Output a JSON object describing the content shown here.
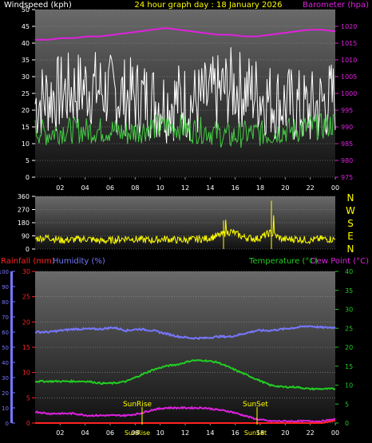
{
  "header": {
    "wind_label": "Windspeed (kph)",
    "title": "24 hour graph day : 18 January 2026",
    "baro_label": "Barometer (hpa)"
  },
  "colors": {
    "windspeed": "#ffffff",
    "windavg": "#44cc44",
    "barometer": "#dd22dd",
    "direction": "#ffff00",
    "rainfall": "#ff2222",
    "humidity": "#7777ff",
    "temperature": "#22cc22",
    "dewpoint": "#dd22dd",
    "panel_bg": "#666666"
  },
  "direction_compass": [
    "N",
    "W",
    "S",
    "E",
    "N"
  ],
  "sun_labels": {
    "sunrise": "SunRise",
    "sunset": "SunSet"
  },
  "lower_labels": {
    "rainfall": "Rainfall (mm)",
    "humidity": "Humidity (%)",
    "temperature": "Temperature (°C)",
    "dewpoint": "Dew Point (°C)"
  },
  "chart_data": [
    {
      "type": "line",
      "x_ticks": [
        "02",
        "04",
        "06",
        "08",
        "10",
        "12",
        "14",
        "16",
        "18",
        "20",
        "22",
        "00"
      ],
      "y_left": {
        "label": "Windspeed (kph)",
        "range": [
          0,
          50
        ],
        "ticks": [
          0,
          5,
          10,
          15,
          20,
          25,
          30,
          35,
          40,
          45,
          50
        ]
      },
      "y_right": {
        "label": "Barometer (hpa)",
        "range": [
          975,
          1025
        ],
        "ticks": [
          975,
          980,
          985,
          990,
          995,
          1000,
          1005,
          1010,
          1015,
          1020
        ]
      },
      "series": [
        {
          "name": "Windspeed (kph)",
          "axis": "left",
          "values": [
            22,
            24,
            25,
            26,
            27,
            26,
            25,
            24,
            24,
            23,
            22,
            23,
            22,
            23,
            25,
            27,
            26,
            25,
            23,
            22,
            21,
            20,
            22,
            24
          ]
        },
        {
          "name": "Barometer (hpa)",
          "axis": "right",
          "values": [
            1016,
            1016,
            1016.5,
            1016.5,
            1017,
            1017,
            1017.5,
            1018,
            1018.5,
            1019,
            1019.5,
            1019,
            1018.5,
            1018,
            1017.5,
            1017.5,
            1017,
            1017,
            1017.5,
            1018,
            1018.5,
            1019,
            1019,
            1018.5
          ]
        },
        {
          "name": "Average windspeed",
          "axis": "left",
          "values": [
            14,
            13,
            14,
            14,
            14,
            14,
            14,
            13,
            14,
            15,
            15,
            15,
            14,
            14,
            13,
            12,
            13,
            13,
            13,
            14,
            14,
            15,
            15,
            16
          ]
        }
      ]
    },
    {
      "type": "line",
      "x_ticks": [
        "02",
        "04",
        "06",
        "08",
        "10",
        "12",
        "14",
        "16",
        "18",
        "20",
        "22",
        "00"
      ],
      "y_left": {
        "label": "",
        "range": [
          0,
          360
        ],
        "ticks": [
          0,
          90,
          180,
          270,
          360
        ]
      },
      "series": [
        {
          "name": "Wind direction",
          "values": [
            70,
            80,
            60,
            65,
            70,
            55,
            60,
            75,
            65,
            60,
            70,
            60,
            65,
            70,
            90,
            120,
            80,
            70,
            110,
            65,
            70,
            60,
            70,
            65
          ]
        }
      ]
    },
    {
      "type": "line",
      "x_ticks": [
        "02",
        "04",
        "06",
        "08",
        "10",
        "12",
        "14",
        "16",
        "18",
        "20",
        "22",
        "00"
      ],
      "y_rain": {
        "label": "Rainfall (mm)",
        "range": [
          0,
          30
        ],
        "ticks": [
          0,
          5,
          10,
          15,
          20,
          25,
          30
        ]
      },
      "y_humidity": {
        "label": "Humidity (%)",
        "range": [
          0,
          100
        ],
        "ticks": [
          0,
          10,
          20,
          30,
          40,
          50,
          60,
          70,
          80,
          90,
          100
        ]
      },
      "y_temp": {
        "label": "Temperature (°C)",
        "range": [
          0,
          40
        ],
        "ticks": [
          0,
          5,
          10,
          15,
          20,
          25,
          30,
          35,
          40
        ]
      },
      "series": [
        {
          "name": "Rainfall (mm)",
          "axis": "rain",
          "values": [
            0,
            0,
            0,
            0,
            0,
            0,
            0,
            0,
            0,
            0,
            0,
            0,
            0,
            0,
            0,
            0,
            0,
            0,
            0,
            0,
            0,
            0,
            0,
            0.5
          ]
        },
        {
          "name": "Humidity (%)",
          "axis": "humidity",
          "values": [
            60,
            60,
            61,
            62,
            62,
            62,
            63,
            61,
            62,
            61,
            59,
            57,
            56,
            56,
            57,
            57,
            59,
            61,
            61,
            62,
            63,
            64,
            63,
            63
          ]
        },
        {
          "name": "Temperature (°C)",
          "axis": "temp",
          "values": [
            11,
            11,
            11,
            11,
            11,
            10.5,
            10.5,
            11,
            12.5,
            14,
            15,
            15.5,
            16.5,
            16.5,
            16,
            14.5,
            13,
            11.5,
            10,
            9.5,
            9.5,
            9,
            9,
            9
          ]
        },
        {
          "name": "Dew Point (°C)",
          "axis": "temp",
          "values": [
            3,
            2.5,
            2.5,
            2.5,
            2,
            2,
            2,
            2,
            2.5,
            3.5,
            4,
            4,
            4,
            4,
            3.5,
            3,
            2,
            1,
            0.5,
            0.5,
            0.5,
            0.5,
            0.5,
            1
          ]
        }
      ]
    }
  ]
}
